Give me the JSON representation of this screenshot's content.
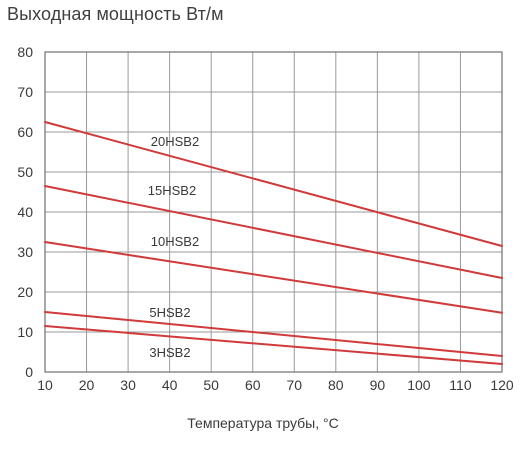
{
  "chart_data": {
    "type": "line",
    "title": "Выходная мощность Вт/м",
    "xlabel": "Температура трубы, °C",
    "ylabel": "",
    "xlim": [
      10,
      120
    ],
    "ylim": [
      0,
      80
    ],
    "x_ticks": [
      10,
      20,
      30,
      40,
      50,
      60,
      70,
      80,
      90,
      100,
      110,
      120
    ],
    "y_ticks": [
      0,
      10,
      20,
      30,
      40,
      50,
      60,
      70,
      80
    ],
    "grid": true,
    "line_color": "#d03a3a",
    "series": [
      {
        "name": "20HSB2",
        "x": [
          10,
          120
        ],
        "y": [
          62.5,
          31.5
        ]
      },
      {
        "name": "15HSB2",
        "x": [
          10,
          120
        ],
        "y": [
          46.5,
          23.5
        ]
      },
      {
        "name": "10HSB2",
        "x": [
          10,
          120
        ],
        "y": [
          32.5,
          14.8
        ]
      },
      {
        "name": "5HSB2",
        "x": [
          10,
          120
        ],
        "y": [
          15,
          4
        ]
      },
      {
        "name": "3HSB2",
        "x": [
          10,
          120
        ],
        "y": [
          11.5,
          2
        ]
      }
    ]
  }
}
